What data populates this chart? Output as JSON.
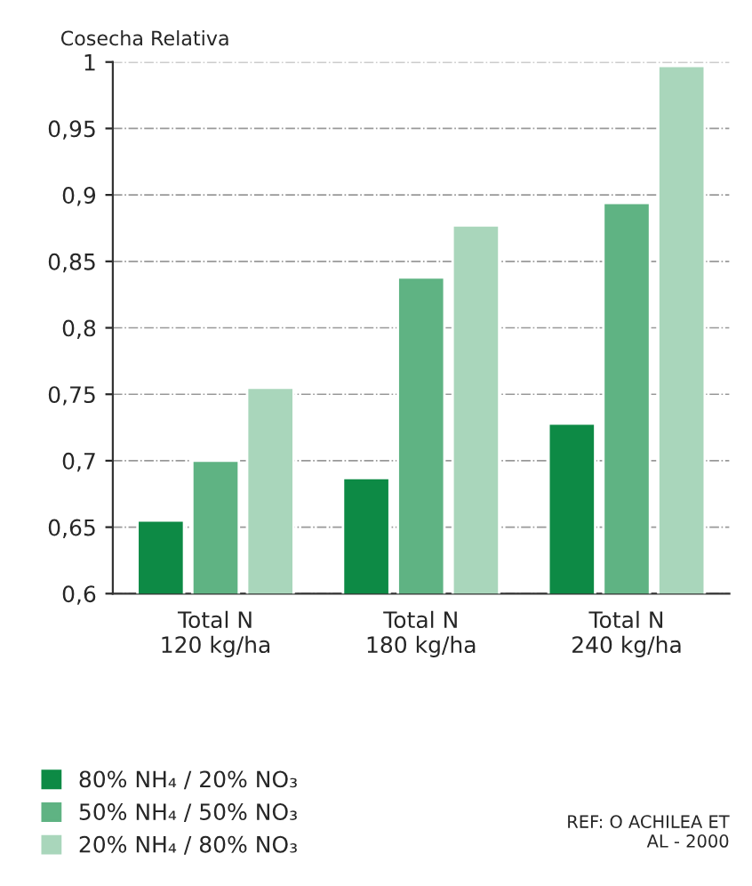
{
  "chart_data": {
    "type": "bar",
    "ylabel": "Cosecha Relativa",
    "categories": [
      "Total N\n120 kg/ha",
      "Total N\n180 kg/ha",
      "Total N\n240 kg/ha"
    ],
    "series": [
      {
        "name": "80% NH₄ / 20% NO₃",
        "color": "#0d8a45",
        "values": [
          0.655,
          0.687,
          0.728
        ]
      },
      {
        "name": "50% NH₄ / 50% NO₃",
        "color": "#5fb383",
        "values": [
          0.7,
          0.838,
          0.894
        ]
      },
      {
        "name": "20% NH₄ / 80% NO₃",
        "color": "#a9d6bb",
        "values": [
          0.755,
          0.877,
          0.997
        ]
      }
    ],
    "ylim": [
      0.6,
      1
    ],
    "yticks": [
      {
        "value": 0.6,
        "label": "0,6"
      },
      {
        "value": 0.65,
        "label": "0,65"
      },
      {
        "value": 0.7,
        "label": "0,7"
      },
      {
        "value": 0.75,
        "label": "0,75"
      },
      {
        "value": 0.8,
        "label": "0,8"
      },
      {
        "value": 0.85,
        "label": "0,85"
      },
      {
        "value": 0.9,
        "label": "0,9"
      },
      {
        "value": 0.95,
        "label": "0,95"
      },
      {
        "value": 1,
        "label": "1"
      }
    ],
    "grid": "y",
    "legend": "bottom left",
    "annotations": [
      "REF: O ACHILEA ET\nAL - 2000"
    ]
  }
}
